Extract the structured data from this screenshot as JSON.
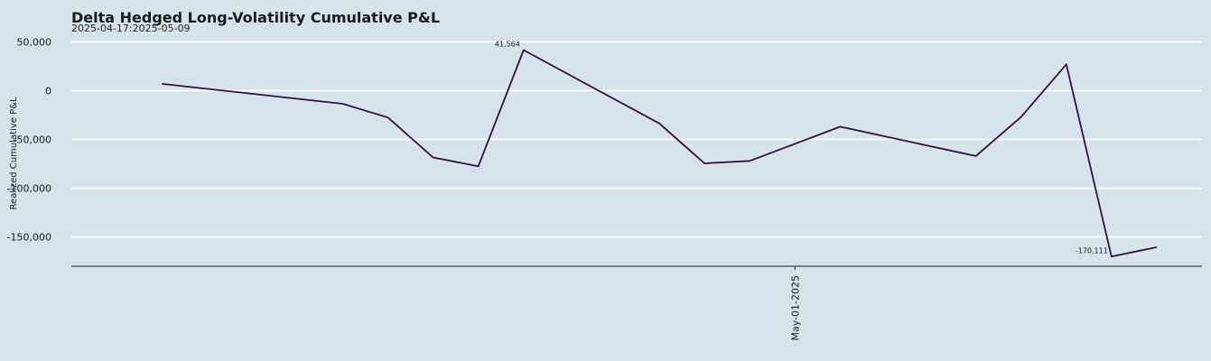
{
  "chart_data": {
    "type": "line",
    "title": "Delta Hedged Long-Volatility Cumulative P&L",
    "subtitle": "2025-04-17:2025-05-09",
    "xlabel": "",
    "ylabel": "Realized Cumulative P&L",
    "ylim": [
      -180000,
      55000
    ],
    "yticks": [
      50000,
      0,
      -50000,
      -100000,
      -150000
    ],
    "ytick_labels": [
      "50,000",
      "0",
      "-50,000",
      "-100,000",
      "-150,000"
    ],
    "x_range": [
      "2025-04-15",
      "2025-05-10"
    ],
    "xtick_dates": [
      "2025-05-01"
    ],
    "xtick_labels": [
      "May-01-2025"
    ],
    "grid": "horizontal",
    "line_color": "#3b0a45",
    "series": [
      {
        "x": [
          "2025-04-17",
          "2025-04-21",
          "2025-04-22",
          "2025-04-23",
          "2025-04-24",
          "2025-04-25",
          "2025-04-28",
          "2025-04-29",
          "2025-04-30",
          "2025-05-02",
          "2025-05-05",
          "2025-05-06",
          "2025-05-07",
          "2025-05-08",
          "2025-05-09"
        ],
        "y": [
          7000,
          -13500,
          -27500,
          -68500,
          -77500,
          41564,
          -33500,
          -74500,
          -72000,
          -37000,
          -67000,
          -27000,
          27000,
          -170111,
          -160500
        ]
      }
    ],
    "annotations": [
      {
        "x": "2025-04-25",
        "y": 41564,
        "text": "41,564",
        "position": "above-left"
      },
      {
        "x": "2025-05-08",
        "y": -170111,
        "text": "-170,111",
        "position": "above-left"
      }
    ]
  }
}
